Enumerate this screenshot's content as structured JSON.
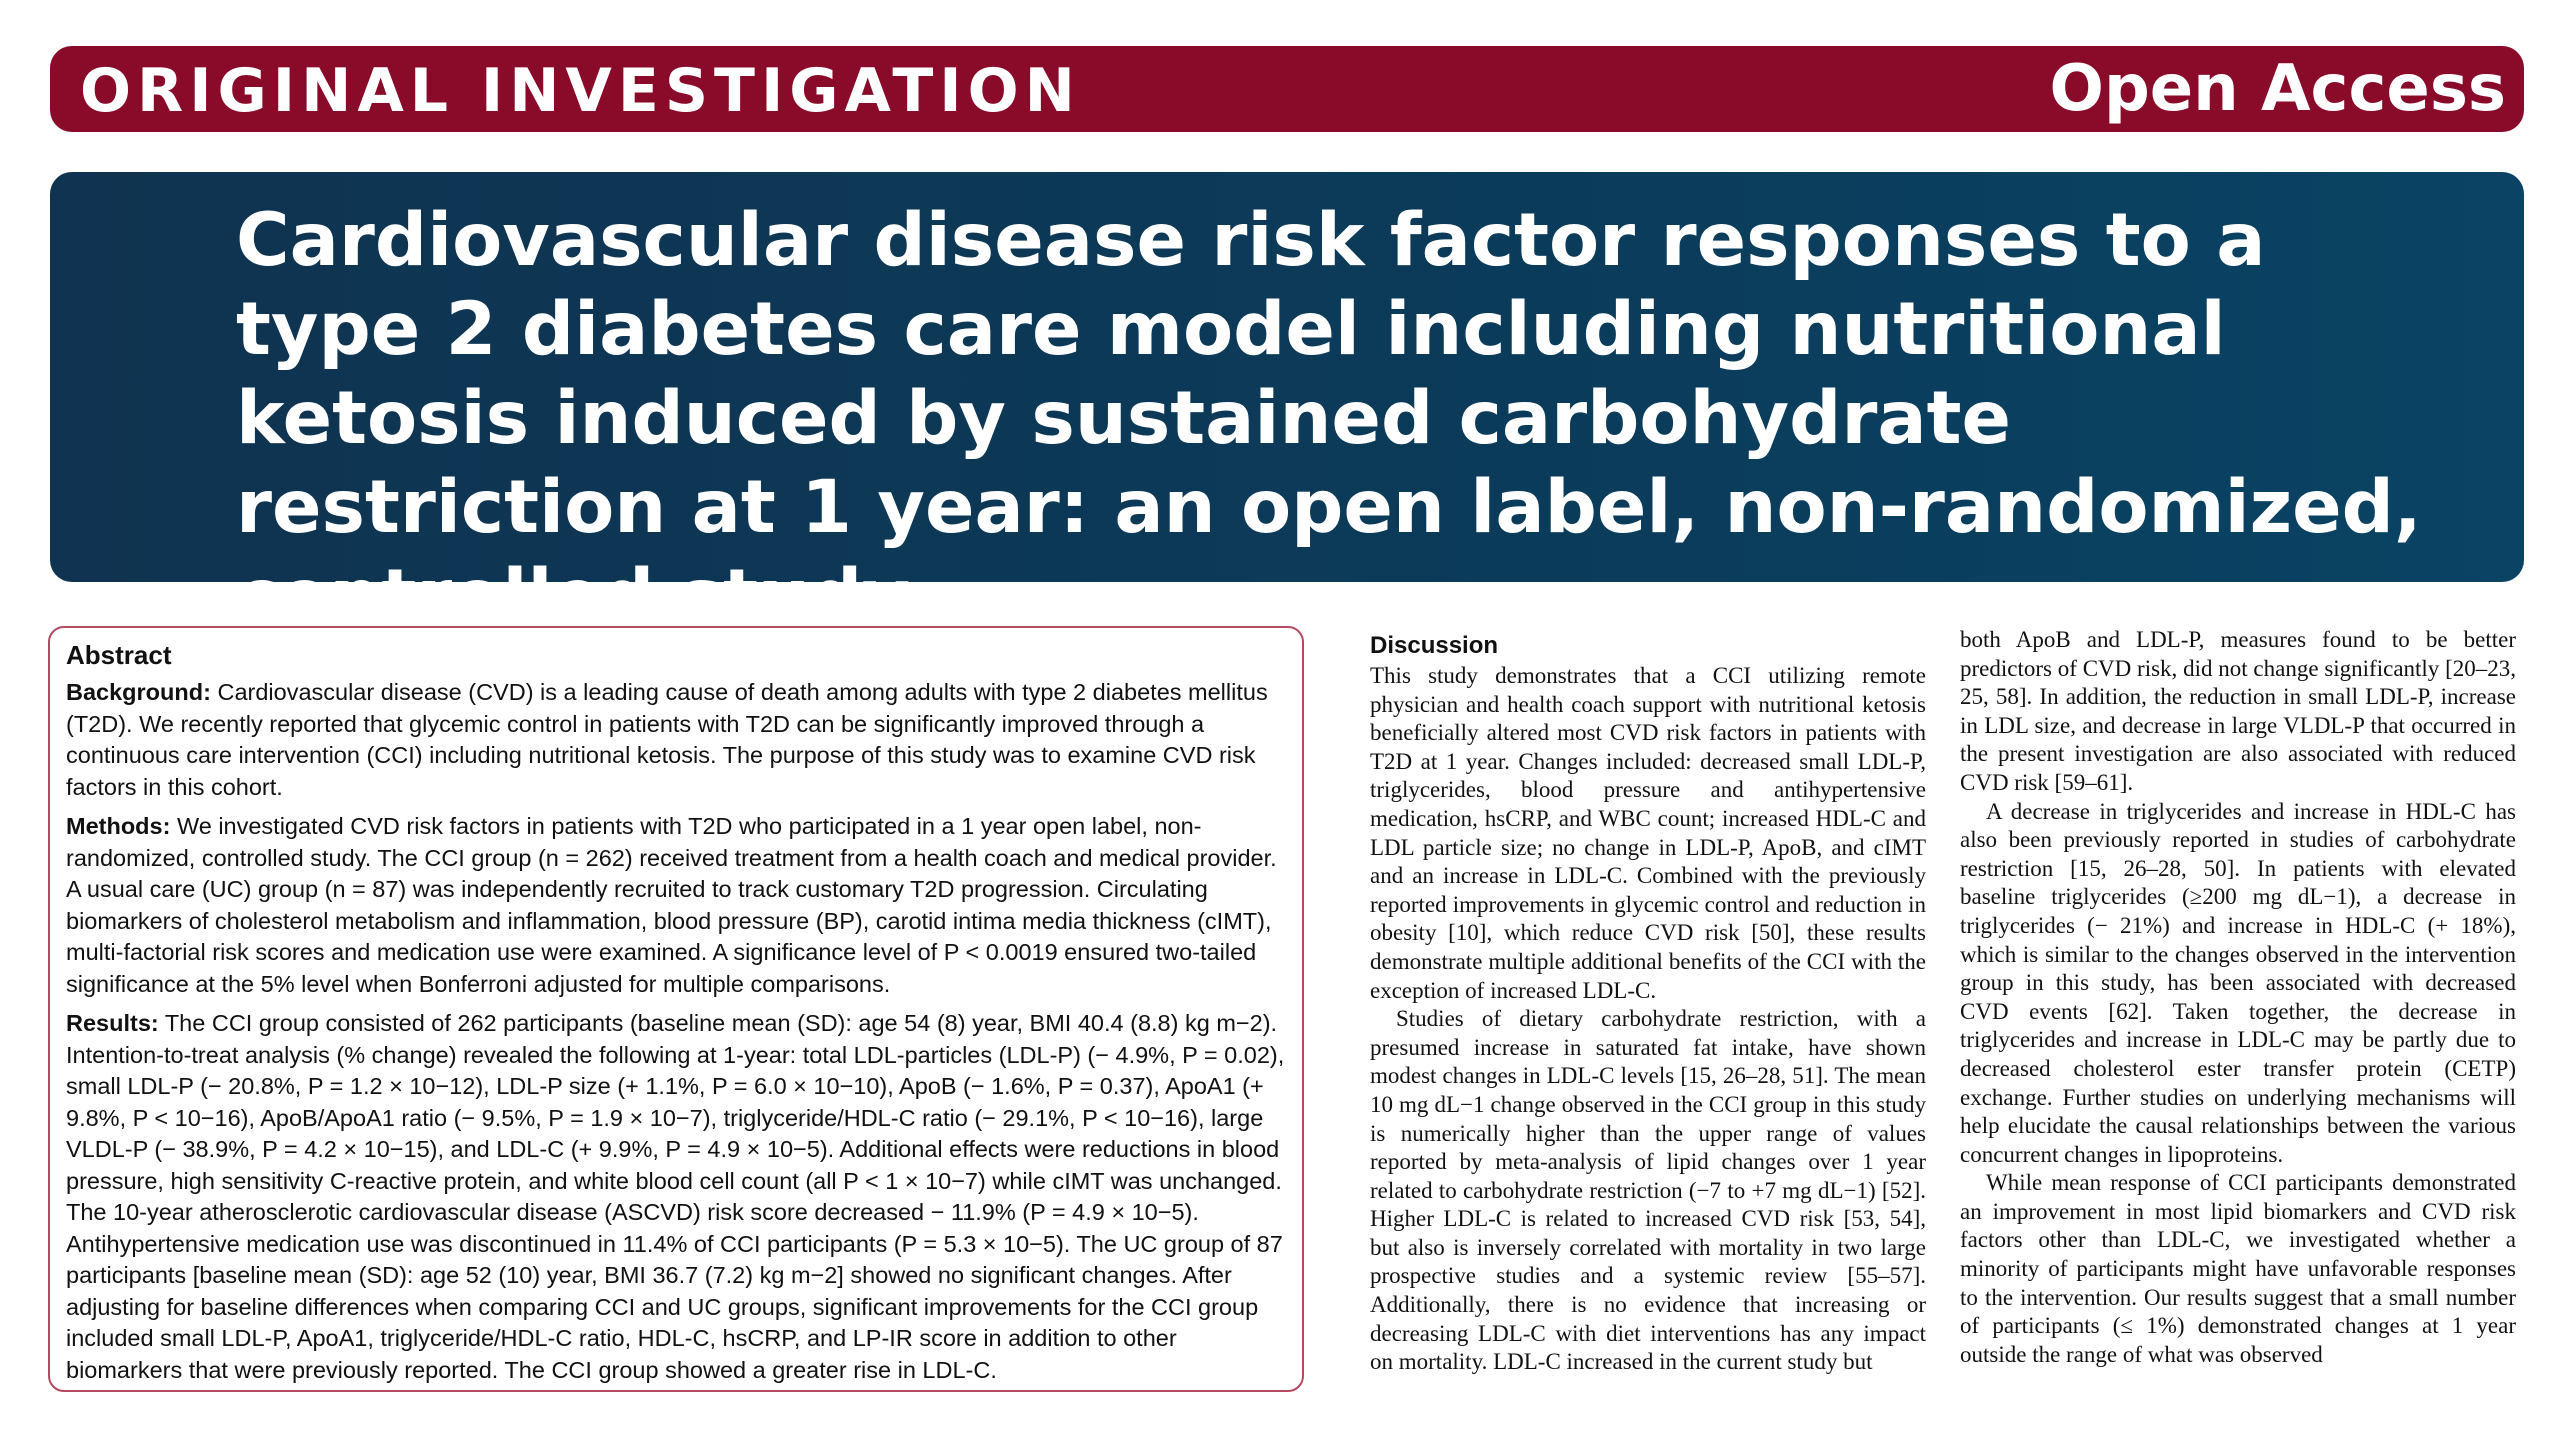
{
  "banner": {
    "left": "ORIGINAL INVESTIGATION",
    "right": "Open Access"
  },
  "title": "Cardiovascular disease risk factor responses to a type 2 diabetes care model including nutritional ketosis induced by sustained carbohydrate restriction at 1 year: an open label, non-randomized, controlled study",
  "abstract": {
    "heading": "Abstract",
    "background_label": "Background:",
    "background": "Cardiovascular disease (CVD) is a leading cause of death among adults with type 2 diabetes mellitus (T2D). We recently reported that glycemic control in patients with T2D can be significantly improved through a continuous care intervention (CCI) including nutritional ketosis. The purpose of this study was to examine CVD risk factors in this cohort.",
    "methods_label": "Methods:",
    "methods": "We investigated CVD risk factors in patients with T2D who participated in a 1 year open label, non-randomized, controlled study. The CCI group (n = 262) received treatment from a health coach and medical provider. A usual care (UC) group (n = 87) was independently recruited to track customary T2D progression. Circulating biomarkers of cholesterol metabolism and inflammation, blood pressure (BP), carotid intima media thickness (cIMT), multi-factorial risk scores and medication use were examined. A significance level of P < 0.0019 ensured two-tailed significance at the 5% level when Bonferroni adjusted for multiple comparisons.",
    "results_label": "Results:",
    "results": "The CCI group consisted of 262 participants (baseline mean (SD): age 54 (8) year, BMI 40.4 (8.8) kg m−2). Intention-to-treat analysis (% change) revealed the following at 1-year: total LDL-particles (LDL-P) (− 4.9%, P = 0.02), small LDL-P (− 20.8%, P = 1.2 × 10−12), LDL-P size (+ 1.1%, P = 6.0 × 10−10), ApoB (− 1.6%, P = 0.37), ApoA1 (+ 9.8%, P < 10−16), ApoB/ApoA1 ratio (− 9.5%, P = 1.9 × 10−7), triglyceride/HDL-C ratio (− 29.1%, P < 10−16), large VLDL-P (− 38.9%, P = 4.2 × 10−15), and LDL-C (+ 9.9%, P = 4.9 × 10−5). Additional effects were reductions in blood pressure, high sensitivity C-reactive protein, and white blood cell count (all P < 1 × 10−7) while cIMT was unchanged. The 10-year atherosclerotic cardiovascular disease (ASCVD) risk score decreased − 11.9% (P = 4.9 × 10−5). Antihypertensive medication use was discontinued in 11.4% of CCI participants (P = 5.3 × 10−5). The UC group of 87 participants [baseline mean (SD): age 52 (10) year, BMI 36.7 (7.2) kg m−2] showed no significant changes. After adjusting for baseline differences when comparing CCI and UC groups, significant improvements for the CCI group included small LDL-P, ApoA1, triglyceride/HDL-C ratio, HDL-C, hsCRP, and LP-IR score in addition to other biomarkers that were previously reported. The CCI group showed a greater rise in LDL-C."
  },
  "discussion": {
    "heading": "Discussion",
    "p1": "This study demonstrates that a CCI utilizing remote physician and health coach support with nutritional ketosis beneficially altered most CVD risk factors in patients with T2D at 1 year. Changes included: decreased small LDL-P, triglycerides, blood pressure and antihypertensive medication, hsCRP, and WBC count; increased HDL-C and LDL particle size; no change in LDL-P, ApoB, and cIMT and an increase in LDL-C. Combined with the previously reported improvements in glycemic control and reduction in obesity [10], which reduce CVD risk [50], these results demonstrate multiple additional benefits of the CCI with the exception of increased LDL-C.",
    "p2": "Studies of dietary carbohydrate restriction, with a presumed increase in saturated fat intake, have shown modest changes in LDL-C levels [15, 26–28, 51]. The mean 10 mg dL−1 change observed in the CCI group in this study is numerically higher than the upper range of values reported by meta-analysis of lipid changes over 1 year related to carbohydrate restriction (−7 to +7 mg dL−1) [52]. Higher LDL-C is related to increased CVD risk [53, 54], but also is inversely correlated with mortality in two large prospective studies and a systemic review [55–57]. Additionally, there is no evidence that increasing or decreasing LDL-C with diet interventions has any impact on mortality. LDL-C increased in the current study but",
    "p3": "both ApoB and LDL-P, measures found to be better predictors of CVD risk, did not change significantly [20–23, 25, 58]. In addition, the reduction in small LDL-P, increase in LDL size, and decrease in large VLDL-P that occurred in the present investigation are also associated with reduced CVD risk [59–61].",
    "p4": "A decrease in triglycerides and increase in HDL-C has also been previously reported in studies of carbohydrate restriction [15, 26–28, 50]. In patients with elevated baseline triglycerides (≥200 mg dL−1), a decrease in triglycerides (− 21%) and increase in HDL-C (+ 18%), which is similar to the changes observed in the intervention group in this study, has been associated with decreased CVD events [62]. Taken together, the decrease in triglycerides and increase in LDL-C may be partly due to decreased cholesterol ester transfer protein (CETP) exchange. Further studies on underlying mechanisms will help elucidate the causal relationships between the various concurrent changes in lipoproteins.",
    "p5": "While mean response of CCI participants demonstrated an improvement in most lipid biomarkers and CVD risk factors other than LDL-C, we investigated whether a minority of participants might have unfavorable responses to the intervention. Our results suggest that a small number of participants (≤ 1%) demonstrated changes at 1 year outside the range of what was observed"
  }
}
